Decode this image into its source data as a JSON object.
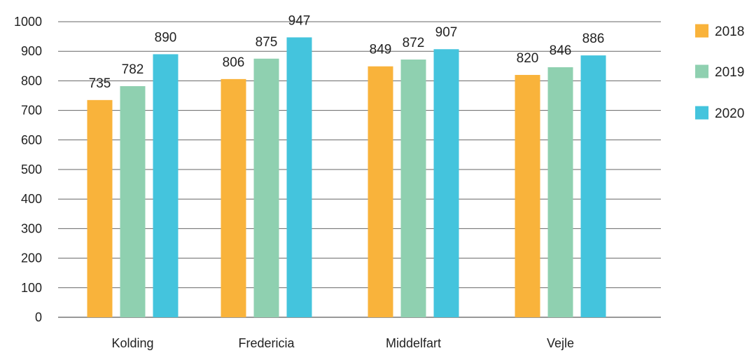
{
  "chart_data": {
    "type": "bar",
    "categories": [
      "Kolding",
      "Fredericia",
      "Middelfart",
      "Vejle"
    ],
    "series": [
      {
        "name": "2018",
        "values": [
          735,
          806,
          849,
          820
        ],
        "color": "#F9B33B"
      },
      {
        "name": "2019",
        "values": [
          782,
          875,
          872,
          846
        ],
        "color": "#8FD0B0"
      },
      {
        "name": "2020",
        "values": [
          890,
          947,
          907,
          886
        ],
        "color": "#44C4DD"
      }
    ],
    "yticks": [
      0,
      100,
      200,
      300,
      400,
      500,
      600,
      700,
      800,
      900,
      1000
    ],
    "ylim": [
      0,
      1000
    ],
    "grid": true,
    "legend_position": "right",
    "data_labels": true
  }
}
